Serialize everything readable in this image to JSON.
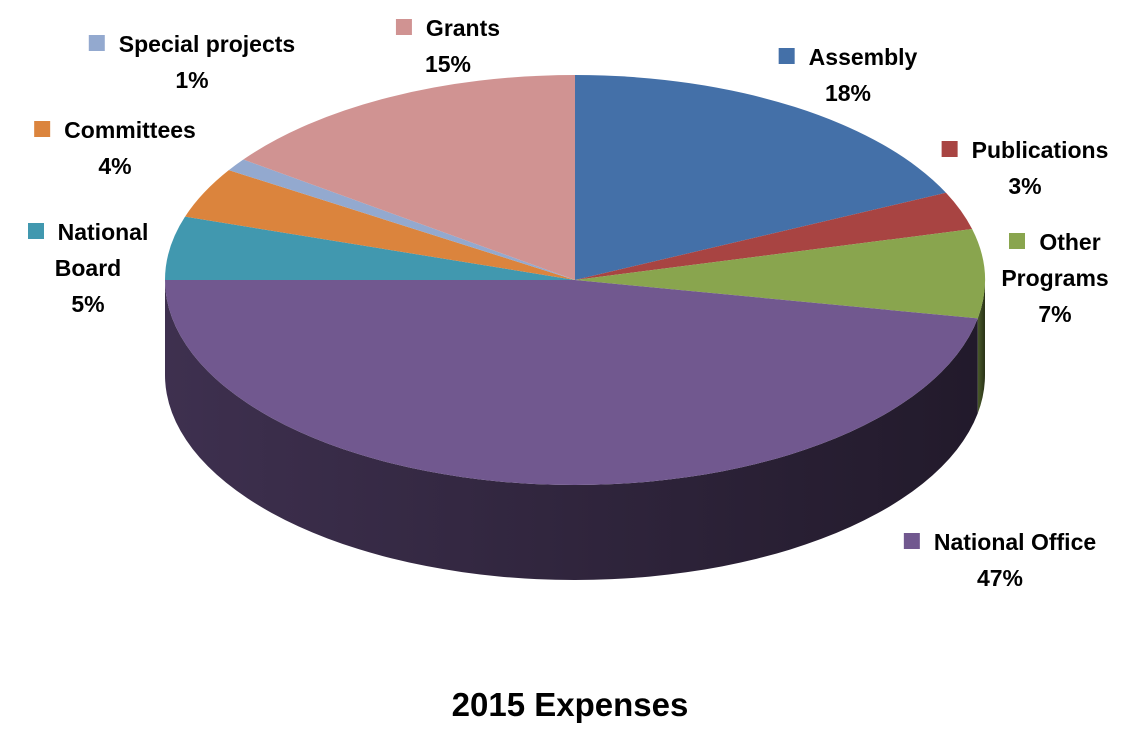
{
  "chart_data": {
    "type": "pie3d",
    "title": "2015 Expenses",
    "categories": [
      "Assembly",
      "Publications",
      "Other Programs",
      "National Office",
      "National Board",
      "Committees",
      "Special projects",
      "Grants"
    ],
    "values": [
      18,
      3,
      7,
      47,
      5,
      4,
      1,
      15
    ],
    "value_labels": [
      "18%",
      "3%",
      "7%",
      "47%",
      "5%",
      "4%",
      "1%",
      "15%"
    ],
    "colors": [
      "#4470a8",
      "#a84442",
      "#89a54e",
      "#71588f",
      "#4198af",
      "#db843d",
      "#93a9cf",
      "#d09392"
    ]
  }
}
